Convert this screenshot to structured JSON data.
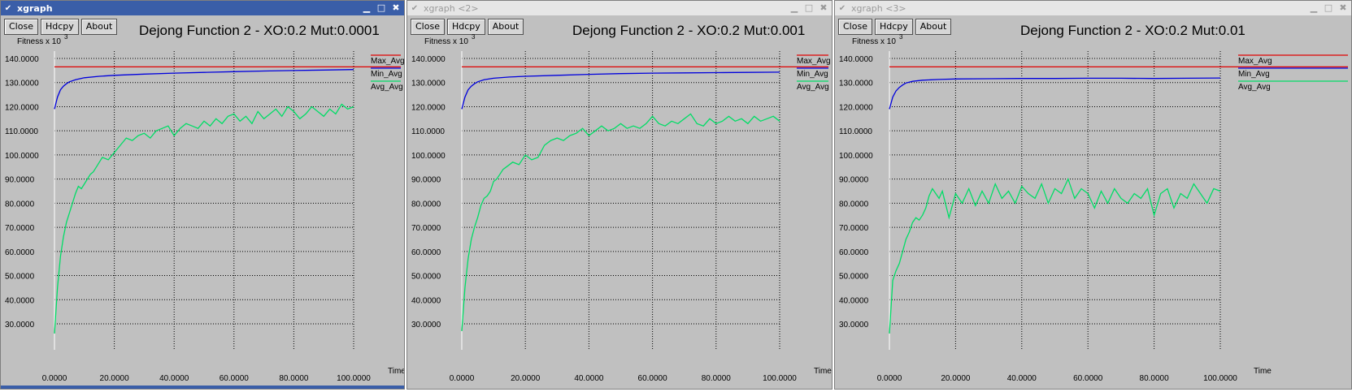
{
  "windows": [
    {
      "title": "xgraph",
      "active": true,
      "buttons": {
        "close": "Close",
        "hardcopy": "Hdcpy",
        "about": "About"
      },
      "title_buttons": {
        "minimize": "▁",
        "maximize": "□",
        "close": "✖"
      },
      "chart_data": {
        "type": "line",
        "title": "Dejong Function 2 - XO:0.2 Mut:0.0001",
        "ylabel": "Fitness x 10",
        "ylabel_exp": "3",
        "xlabel": "Time",
        "xlim": [
          0,
          100
        ],
        "ylim": [
          25,
          145
        ],
        "xticks": [
          "0.0000",
          "20.0000",
          "40.0000",
          "60.0000",
          "80.0000",
          "100.0000"
        ],
        "yticks": [
          "140.0000",
          "130.0000",
          "120.0000",
          "110.0000",
          "100.0000",
          "90.0000",
          "80.0000",
          "70.0000",
          "60.0000",
          "50.0000",
          "40.0000",
          "30.0000"
        ],
        "grid": true,
        "legend_position": "top-right",
        "series": [
          {
            "name": "Max_Avg",
            "color": "#e00000",
            "x": [
              0,
              100
            ],
            "y": [
              136.5,
              136.5
            ]
          },
          {
            "name": "Min_Avg",
            "color": "#0000dd",
            "x": [
              0,
              1,
              2,
              3,
              4,
              5,
              7,
              10,
              15,
              20,
              30,
              40,
              50,
              60,
              70,
              80,
              90,
              100
            ],
            "y": [
              119,
              124,
              127,
              128.5,
              129.5,
              130.3,
              131.2,
              132,
              132.6,
              133,
              133.5,
              133.9,
              134.2,
              134.5,
              134.8,
              135,
              135.2,
              135.4
            ]
          },
          {
            "name": "Avg_Avg",
            "color": "#00dd66",
            "x": [
              0,
              1,
              2,
              3,
              4,
              5,
              6,
              7,
              8,
              9,
              10,
              11,
              12,
              13,
              14,
              15,
              16,
              18,
              20,
              22,
              24,
              26,
              28,
              30,
              32,
              34,
              36,
              38,
              40,
              42,
              44,
              46,
              48,
              50,
              52,
              54,
              56,
              58,
              60,
              62,
              64,
              66,
              68,
              70,
              72,
              74,
              76,
              78,
              80,
              82,
              84,
              86,
              88,
              90,
              92,
              94,
              96,
              98,
              100
            ],
            "y": [
              26,
              45,
              58,
              66,
              72,
              76,
              80,
              84,
              87,
              86,
              88,
              90,
              92,
              93,
              95,
              97,
              99,
              98,
              101,
              104,
              107,
              106,
              108,
              109,
              107,
              110,
              111,
              112,
              108,
              111,
              113,
              112,
              111,
              114,
              112,
              115,
              113,
              116,
              117,
              114,
              116,
              113,
              118,
              115,
              117,
              119,
              116,
              120,
              118,
              115,
              117,
              120,
              118,
              116,
              119,
              117,
              121,
              119,
              120
            ]
          }
        ]
      }
    },
    {
      "title": "xgraph <2>",
      "active": false,
      "buttons": {
        "close": "Close",
        "hardcopy": "Hdcpy",
        "about": "About"
      },
      "title_buttons": {
        "minimize": "▁",
        "maximize": "□",
        "close": "✖"
      },
      "chart_data": {
        "type": "line",
        "title": "Dejong Function 2 - XO:0.2 Mut:0.001",
        "ylabel": "Fitness x 10",
        "ylabel_exp": "3",
        "xlabel": "Time",
        "xlim": [
          0,
          100
        ],
        "ylim": [
          25,
          145
        ],
        "xticks": [
          "0.0000",
          "20.0000",
          "40.0000",
          "60.0000",
          "80.0000",
          "100.0000"
        ],
        "yticks": [
          "140.0000",
          "130.0000",
          "120.0000",
          "110.0000",
          "100.0000",
          "90.0000",
          "80.0000",
          "70.0000",
          "60.0000",
          "50.0000",
          "40.0000",
          "30.0000"
        ],
        "grid": true,
        "legend_position": "top-right",
        "series": [
          {
            "name": "Max_Avg",
            "color": "#e00000",
            "x": [
              0,
              100
            ],
            "y": [
              136.5,
              136.5
            ]
          },
          {
            "name": "Min_Avg",
            "color": "#0000dd",
            "x": [
              0,
              1,
              2,
              3,
              4,
              5,
              7,
              10,
              15,
              20,
              30,
              40,
              50,
              60,
              70,
              80,
              90,
              100
            ],
            "y": [
              119,
              124,
              127,
              128.5,
              129.5,
              130.3,
              131.2,
              131.8,
              132.3,
              132.6,
              133,
              133.4,
              133.7,
              133.9,
              134,
              134.1,
              134.2,
              134.3
            ]
          },
          {
            "name": "Avg_Avg",
            "color": "#00dd66",
            "x": [
              0,
              1,
              2,
              3,
              4,
              5,
              6,
              7,
              8,
              9,
              10,
              11,
              12,
              13,
              14,
              15,
              16,
              18,
              20,
              22,
              24,
              26,
              28,
              30,
              32,
              34,
              36,
              38,
              40,
              42,
              44,
              46,
              48,
              50,
              52,
              54,
              56,
              58,
              60,
              62,
              64,
              66,
              68,
              70,
              72,
              74,
              76,
              78,
              80,
              82,
              84,
              86,
              88,
              90,
              92,
              94,
              96,
              98,
              100
            ],
            "y": [
              27,
              45,
              57,
              65,
              70,
              74,
              79,
              82,
              83,
              85,
              89,
              90,
              92,
              94,
              95,
              96,
              97,
              96,
              100,
              98,
              99,
              104,
              106,
              107,
              106,
              108,
              109,
              111,
              108,
              110,
              112,
              110,
              111,
              113,
              111,
              112,
              111,
              113,
              116,
              113,
              112,
              114,
              113,
              115,
              117,
              113,
              112,
              115,
              113,
              114,
              116,
              114,
              115,
              113,
              116,
              114,
              115,
              116,
              114
            ]
          }
        ]
      }
    },
    {
      "title": "xgraph <3>",
      "active": false,
      "buttons": {
        "close": "Close",
        "hardcopy": "Hdcpy",
        "about": "About"
      },
      "title_buttons": {
        "minimize": "▁",
        "maximize": "□",
        "close": "✖"
      },
      "chart_data": {
        "type": "line",
        "title": "Dejong Function 2 - XO:0.2 Mut:0.01",
        "ylabel": "Fitness x 10",
        "ylabel_exp": "3",
        "xlabel": "Time",
        "xlim": [
          0,
          100
        ],
        "ylim": [
          25,
          145
        ],
        "xticks": [
          "0.0000",
          "20.0000",
          "40.0000",
          "60.0000",
          "80.0000",
          "100.0000"
        ],
        "yticks": [
          "140.0000",
          "130.0000",
          "120.0000",
          "110.0000",
          "100.0000",
          "90.0000",
          "80.0000",
          "70.0000",
          "60.0000",
          "50.0000",
          "40.0000",
          "30.0000"
        ],
        "grid": true,
        "legend_position": "top-right",
        "series": [
          {
            "name": "Max_Avg",
            "color": "#e00000",
            "x": [
              0,
              100
            ],
            "y": [
              136.5,
              136.5
            ]
          },
          {
            "name": "Min_Avg",
            "color": "#0000dd",
            "x": [
              0,
              1,
              2,
              3,
              4,
              5,
              7,
              10,
              15,
              20,
              30,
              40,
              50,
              60,
              70,
              80,
              90,
              100
            ],
            "y": [
              119,
              124,
              126.5,
              128,
              129,
              129.8,
              130.5,
              131,
              131.3,
              131.5,
              131.6,
              131.7,
              131.7,
              131.8,
              131.8,
              131.7,
              131.8,
              131.9
            ]
          },
          {
            "name": "Avg_Avg",
            "color": "#00dd66",
            "x": [
              0,
              1,
              2,
              3,
              4,
              5,
              6,
              7,
              8,
              9,
              10,
              11,
              12,
              13,
              14,
              15,
              16,
              18,
              20,
              22,
              24,
              26,
              28,
              30,
              32,
              34,
              36,
              38,
              40,
              42,
              44,
              46,
              48,
              50,
              52,
              54,
              56,
              58,
              60,
              62,
              64,
              66,
              68,
              70,
              72,
              74,
              76,
              78,
              80,
              82,
              84,
              86,
              88,
              90,
              92,
              94,
              96,
              98,
              100
            ],
            "y": [
              26,
              48,
              52,
              55,
              60,
              65,
              68,
              72,
              74,
              73,
              75,
              78,
              83,
              86,
              84,
              82,
              85,
              74,
              84,
              80,
              86,
              79,
              85,
              80,
              88,
              82,
              85,
              80,
              87,
              84,
              82,
              88,
              80,
              86,
              84,
              90,
              82,
              86,
              84,
              78,
              85,
              80,
              86,
              82,
              80,
              84,
              82,
              86,
              75,
              84,
              86,
              78,
              84,
              82,
              88,
              84,
              80,
              86,
              85
            ]
          }
        ]
      }
    }
  ]
}
